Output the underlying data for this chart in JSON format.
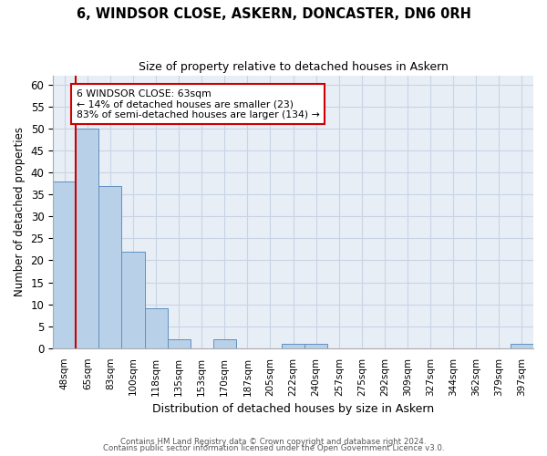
{
  "title": "6, WINDSOR CLOSE, ASKERN, DONCASTER, DN6 0RH",
  "subtitle": "Size of property relative to detached houses in Askern",
  "xlabel": "Distribution of detached houses by size in Askern",
  "ylabel": "Number of detached properties",
  "bar_labels": [
    "48sqm",
    "65sqm",
    "83sqm",
    "100sqm",
    "118sqm",
    "135sqm",
    "153sqm",
    "170sqm",
    "187sqm",
    "205sqm",
    "222sqm",
    "240sqm",
    "257sqm",
    "275sqm",
    "292sqm",
    "309sqm",
    "327sqm",
    "344sqm",
    "362sqm",
    "379sqm",
    "397sqm"
  ],
  "bar_values": [
    38,
    50,
    37,
    22,
    9,
    2,
    0,
    2,
    0,
    0,
    1,
    1,
    0,
    0,
    0,
    0,
    0,
    0,
    0,
    0,
    1
  ],
  "bar_color": "#b8d0e8",
  "bar_edgecolor": "#6090c0",
  "property_line_x": 0.5,
  "annotation_title": "6 WINDSOR CLOSE: 63sqm",
  "pct_smaller": "14% of detached houses are smaller (23)",
  "pct_larger": "83% of semi-detached houses are larger (134)",
  "annotation_box_edgecolor": "#cc0000",
  "line_color": "#cc0000",
  "ylim": [
    0,
    62
  ],
  "yticks": [
    0,
    5,
    10,
    15,
    20,
    25,
    30,
    35,
    40,
    45,
    50,
    55,
    60
  ],
  "background_color": "#ffffff",
  "axes_facecolor": "#e8eef6",
  "grid_color": "#c8d4e4",
  "title_fontsize": 10.5,
  "subtitle_fontsize": 9,
  "footer_line1": "Contains HM Land Registry data © Crown copyright and database right 2024.",
  "footer_line2": "Contains public sector information licensed under the Open Government Licence v3.0."
}
